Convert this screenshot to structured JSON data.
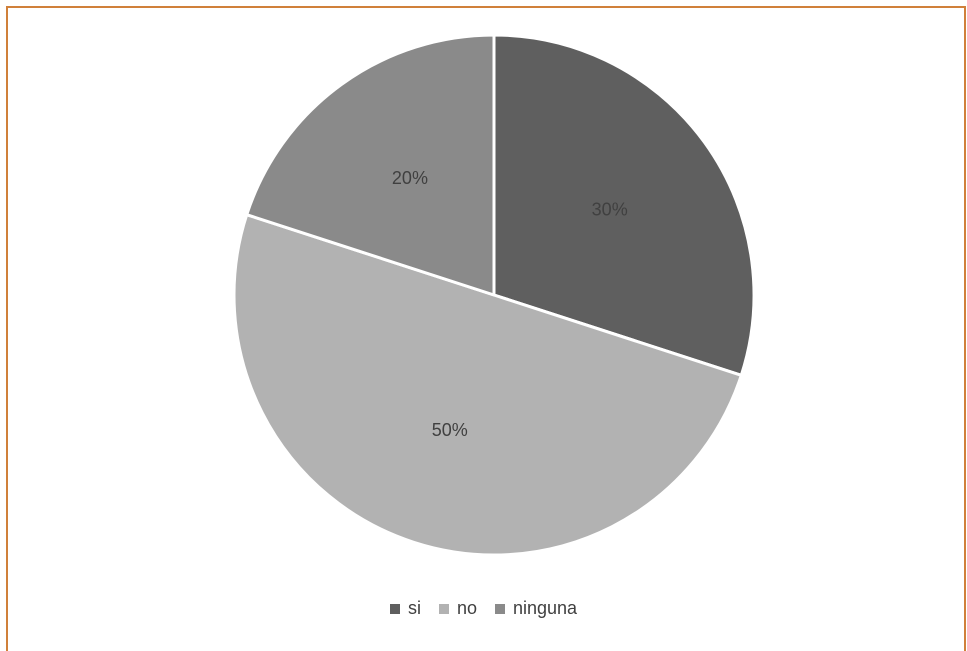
{
  "chart_data": {
    "type": "pie",
    "categories": [
      "si",
      "no",
      "ninguna"
    ],
    "values": [
      30,
      50,
      20
    ],
    "data_labels": [
      "30%",
      "50%",
      "20%"
    ],
    "colors": [
      "#5f5f5f",
      "#b2b2b2",
      "#8a8a8a"
    ],
    "legend_position": "bottom"
  }
}
